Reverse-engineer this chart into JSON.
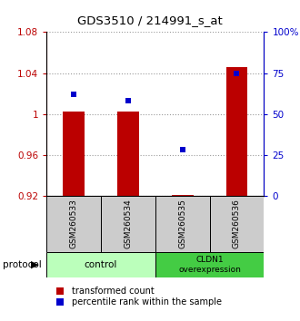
{
  "title": "GDS3510 / 214991_s_at",
  "samples": [
    "GSM260533",
    "GSM260534",
    "GSM260535",
    "GSM260536"
  ],
  "red_values": [
    1.002,
    1.002,
    0.921,
    1.046
  ],
  "blue_values": [
    0.62,
    0.58,
    0.28,
    0.75
  ],
  "ylim_left": [
    0.92,
    1.08
  ],
  "ylim_right": [
    0.0,
    1.0
  ],
  "yticks_left": [
    0.92,
    0.96,
    1.0,
    1.04,
    1.08
  ],
  "ytick_labels_left": [
    "0.92",
    "0.96",
    "1",
    "1.04",
    "1.08"
  ],
  "yticks_right": [
    0.0,
    0.25,
    0.5,
    0.75,
    1.0
  ],
  "ytick_labels_right": [
    "0",
    "25",
    "50",
    "75",
    "100%"
  ],
  "red_color": "#bb0000",
  "blue_color": "#0000cc",
  "bar_bottom": 0.92,
  "control_color": "#bbffbb",
  "overexp_color": "#44cc44",
  "sample_box_color": "#cccccc",
  "bar_width": 0.4,
  "x_positions": [
    1,
    2,
    3,
    4
  ]
}
